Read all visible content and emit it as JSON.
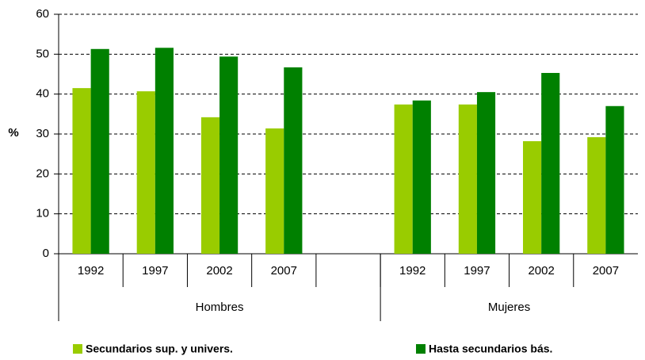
{
  "chart_data": {
    "type": "bar",
    "categories": [
      "1992",
      "1997",
      "2002",
      "2007",
      null,
      "1992",
      "1997",
      "2002",
      "2007"
    ],
    "groups": [
      {
        "label": "Hombres",
        "count": 5
      },
      {
        "label": "Mujeres",
        "count": 4
      }
    ],
    "series": [
      {
        "name": "Secundarios sup. y univers.",
        "color": "#99cc00",
        "values": [
          41.5,
          40.7,
          34.2,
          31.4,
          null,
          37.4,
          37.4,
          28.2,
          29.2
        ]
      },
      {
        "name": "Hasta secundarios bás.",
        "color": "#008000",
        "values": [
          51.3,
          51.6,
          49.4,
          46.7,
          null,
          38.4,
          40.5,
          45.3,
          37.0
        ]
      }
    ],
    "y_label": "%",
    "ylim": [
      0,
      60
    ],
    "yticks": [
      0,
      10,
      20,
      30,
      40,
      50,
      60
    ],
    "grid": true
  }
}
